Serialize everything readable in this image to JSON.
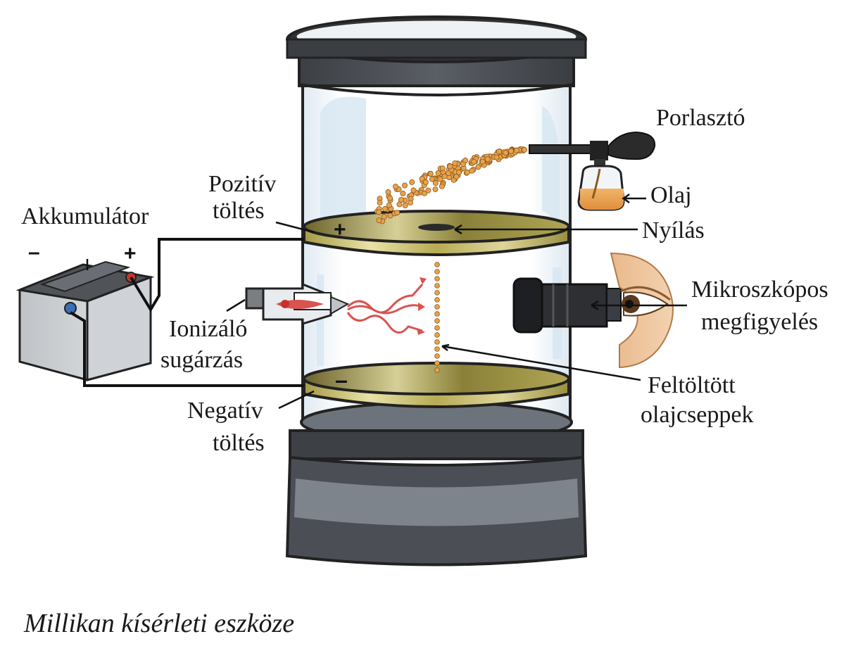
{
  "labels": {
    "porlaszto": "Porlasztó",
    "olaj": "Olaj",
    "pozitiv_1": "Pozitív",
    "pozitiv_2": "töltés",
    "akkumulator": "Akkumulátor",
    "nyilas": "Nyílás",
    "mikro_1": "Mikroszkópos",
    "mikro_2": "megfigyelés",
    "ionizalo_1": "Ionizáló",
    "ionizalo_2": "sugárzás",
    "feltoltott_1": "Feltöltött",
    "feltoltott_2": "olajcseppek",
    "negativ_1": "Negatív",
    "negativ_2": "töltés"
  },
  "symbols": {
    "plate_plus": "+",
    "plate_minus": "–",
    "battery_minus": "–",
    "battery_plus": "+"
  },
  "caption": "Millikan kísérleti eszköze",
  "colors": {
    "droplet": "#e8a24a",
    "plate_gold": "#c8bd6a",
    "radiation": "#d9534f",
    "wire": "#111111",
    "cylinder_dark": "#3a3d42"
  }
}
